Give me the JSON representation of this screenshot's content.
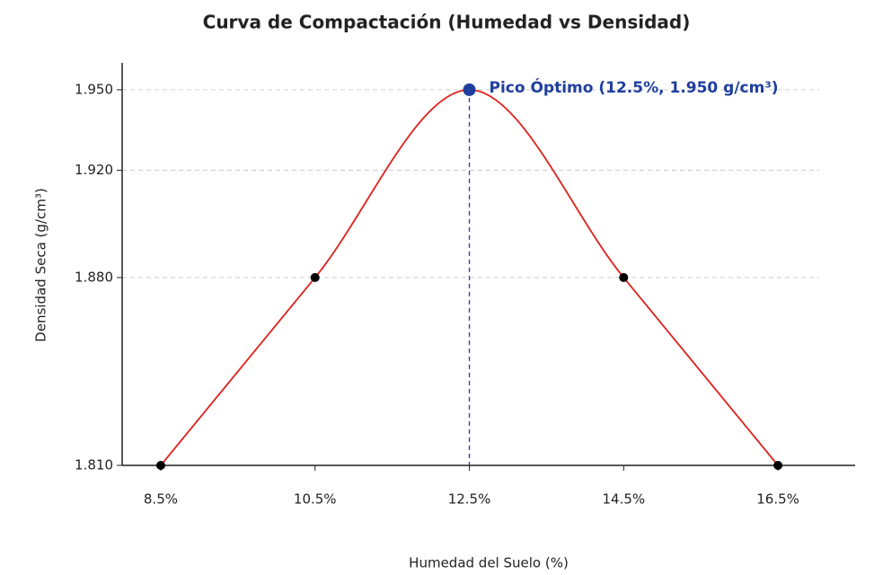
{
  "chart_data": {
    "type": "line",
    "title": "Curva de Compactación (Humedad vs Densidad)",
    "xlabel": "Humedad del Suelo (%)",
    "ylabel": "Densidad Seca (g/cm³)",
    "x": [
      8.5,
      10.5,
      12.5,
      14.5,
      16.5
    ],
    "series": [
      {
        "name": "Densidad Seca",
        "color": "#e0201b",
        "marker_color": "#000000",
        "values": [
          1.81,
          1.88,
          1.95,
          1.88,
          1.81
        ]
      }
    ],
    "xlim": [
      8.0,
      17.5
    ],
    "xticks": [
      {
        "value": 8.5,
        "label": "8.5%"
      },
      {
        "value": 10.5,
        "label": "10.5%"
      },
      {
        "value": 12.5,
        "label": "12.5%"
      },
      {
        "value": 14.5,
        "label": "14.5%"
      },
      {
        "value": 16.5,
        "label": "16.5%"
      }
    ],
    "ylim": [
      1.81,
      1.96
    ],
    "yticks": [
      {
        "value": 1.81,
        "label": "1.810"
      },
      {
        "value": 1.88,
        "label": "1.880"
      },
      {
        "value": 1.92,
        "label": "1.920"
      },
      {
        "value": 1.95,
        "label": "1.950"
      }
    ],
    "grid": true,
    "annotations": [
      {
        "text": "Pico Óptimo (12.5%, 1.950 g/cm³)",
        "x": 12.5,
        "y": 1.95,
        "color": "#1f3f9e"
      }
    ]
  }
}
